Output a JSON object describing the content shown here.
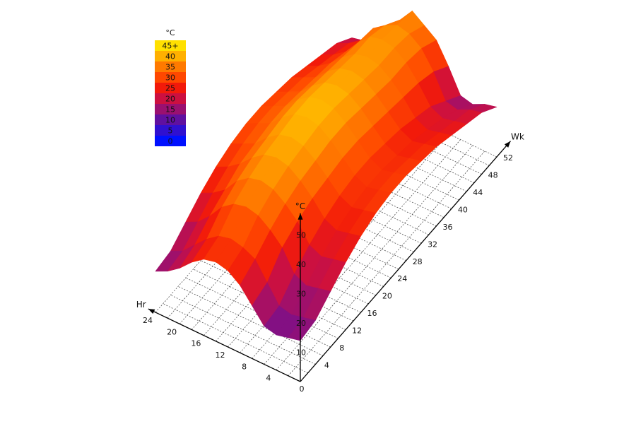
{
  "chart_data": {
    "type": "surface3d",
    "x_axis": {
      "label": "Hr",
      "ticks": [
        "4",
        "8",
        "12",
        "16",
        "20",
        "24"
      ],
      "range": [
        0,
        24
      ]
    },
    "y_axis": {
      "label": "Wk",
      "ticks": [
        "4",
        "8",
        "12",
        "16",
        "20",
        "24",
        "28",
        "32",
        "36",
        "40",
        "44",
        "48",
        "52"
      ],
      "range": [
        0,
        52
      ]
    },
    "z_axis": {
      "label": "°C",
      "ticks": [
        "10",
        "20",
        "30",
        "40",
        "50"
      ],
      "range": [
        0,
        55
      ]
    },
    "origin_label": "0",
    "color_scale": {
      "title": "°C",
      "levels": [
        {
          "label": "45+",
          "color": "#ffe000"
        },
        {
          "label": "40",
          "color": "#ffb000"
        },
        {
          "label": "35",
          "color": "#ff7a00"
        },
        {
          "label": "30",
          "color": "#ff4800"
        },
        {
          "label": "25",
          "color": "#f21a0a"
        },
        {
          "label": "20",
          "color": "#cc1040"
        },
        {
          "label": "15",
          "color": "#9a1070"
        },
        {
          "label": "10",
          "color": "#6010a0"
        },
        {
          "label": "5",
          "color": "#3010d0"
        },
        {
          "label": "0",
          "color": "#0010ff"
        }
      ]
    },
    "surface": {
      "description_fields": "temperature (°C) by hour of day (0-24) and week of year (0-52)",
      "hours": [
        0,
        2,
        4,
        6,
        8,
        10,
        12,
        14,
        16,
        18,
        20,
        22,
        24
      ],
      "weeks": [
        0,
        4,
        8,
        12,
        16,
        20,
        24,
        28,
        32,
        36,
        40,
        44,
        48,
        52
      ],
      "z_by_week": [
        [
          14,
          13,
          12,
          13,
          18,
          23,
          26,
          27,
          26,
          23,
          19,
          16,
          14
        ],
        [
          15,
          14,
          13,
          14,
          20,
          26,
          28,
          29,
          28,
          25,
          21,
          17,
          15
        ],
        [
          19,
          18,
          17,
          19,
          26,
          30,
          33,
          34,
          33,
          30,
          25,
          21,
          19
        ],
        [
          23,
          22,
          21,
          23,
          29,
          33,
          36,
          37,
          36,
          33,
          28,
          25,
          23
        ],
        [
          26,
          25,
          24,
          26,
          31,
          35,
          38,
          39,
          38,
          35,
          31,
          28,
          26
        ],
        [
          28,
          27,
          26,
          28,
          32,
          36,
          39,
          40,
          39,
          36,
          32,
          30,
          28
        ],
        [
          29,
          28,
          27,
          29,
          33,
          37,
          40,
          41,
          40,
          37,
          33,
          31,
          29
        ],
        [
          29,
          28,
          27,
          29,
          33,
          37,
          40,
          41,
          40,
          37,
          33,
          31,
          29
        ],
        [
          28,
          27,
          26,
          28,
          32,
          36,
          39,
          40,
          39,
          36,
          32,
          30,
          28
        ],
        [
          27,
          26,
          25,
          27,
          31,
          35,
          38,
          39,
          38,
          35,
          31,
          29,
          27
        ],
        [
          25,
          24,
          23,
          25,
          30,
          34,
          37,
          38,
          37,
          34,
          30,
          27,
          25
        ],
        [
          23,
          22,
          21,
          23,
          29,
          34,
          37,
          38,
          37,
          33,
          28,
          25,
          23
        ],
        [
          21,
          20,
          18,
          19,
          27,
          33,
          36,
          37,
          35,
          32,
          26,
          23,
          21
        ],
        [
          17,
          16,
          14,
          15,
          23,
          30,
          33,
          36,
          31,
          27,
          20,
          18,
          17
        ]
      ]
    }
  }
}
